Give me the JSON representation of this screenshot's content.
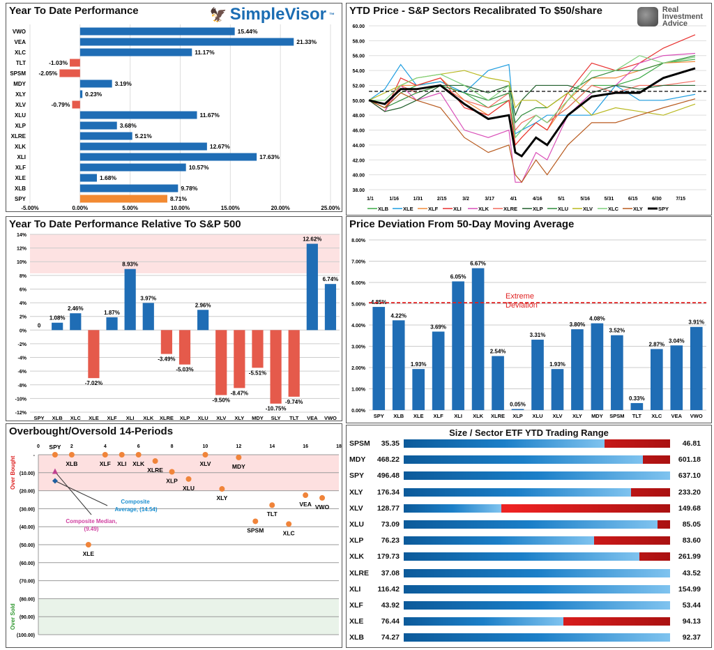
{
  "brand": {
    "simplevisor": "SimpleVisor",
    "tm": "™",
    "ria": [
      "Real",
      "Investment",
      "Advice"
    ]
  },
  "chart_data": [
    {
      "id": "ytd",
      "type": "bar",
      "orientation": "horizontal",
      "title": "Year To Date Performance",
      "categories": [
        "VWO",
        "VEA",
        "XLC",
        "TLT",
        "SPSM",
        "MDY",
        "XLY",
        "XLV",
        "XLU",
        "XLP",
        "XLRE",
        "XLK",
        "XLI",
        "XLF",
        "XLE",
        "XLB",
        "SPY"
      ],
      "values": [
        15.44,
        21.33,
        11.17,
        -1.03,
        -2.05,
        3.19,
        0.23,
        -0.79,
        11.67,
        3.68,
        5.21,
        12.67,
        17.63,
        10.57,
        1.68,
        9.78,
        8.71
      ],
      "labels": [
        "15.44%",
        "21.33%",
        "11.17%",
        "-1.03%",
        "-2.05%",
        "3.19%",
        "0.23%",
        "-0.79%",
        "11.67%",
        "3.68%",
        "5.21%",
        "12.67%",
        "17.63%",
        "10.57%",
        "1.68%",
        "9.78%",
        "8.71%"
      ],
      "xlim": [
        -5,
        25
      ],
      "xticks": [
        "-5.00%",
        "0.00%",
        "5.00%",
        "10.00%",
        "15.00%",
        "20.00%",
        "25.00%"
      ],
      "colors": {
        "positive": "#1f6db5",
        "negative": "#e55a4b",
        "highlight": "#f28a32"
      }
    },
    {
      "id": "prices",
      "type": "line",
      "title": "YTD Price - S&P Sectors Recalibrated To $50/share",
      "x_days": [
        0,
        10,
        20,
        30,
        45,
        60,
        75,
        88,
        92,
        96,
        105,
        112,
        125,
        140,
        155,
        170,
        185,
        205
      ],
      "xticks": [
        "1/1",
        "1/16",
        "1/31",
        "2/15",
        "3/2",
        "3/17",
        "4/1",
        "4/16",
        "5/1",
        "5/16",
        "5/31",
        "6/15",
        "6/30",
        "7/15"
      ],
      "ylim": [
        38,
        60
      ],
      "yticks": [
        "38.00",
        "40.00",
        "42.00",
        "44.00",
        "46.00",
        "48.00",
        "50.00",
        "52.00",
        "54.00",
        "56.00",
        "58.00",
        "60.00"
      ],
      "reference_line": 51.2,
      "series": [
        {
          "name": "XLB",
          "color": "#3aa845",
          "values": [
            50,
            49,
            51,
            52,
            52.5,
            51,
            49,
            50,
            45,
            46,
            48,
            47,
            49,
            52,
            52,
            53,
            55,
            55.5
          ]
        },
        {
          "name": "XLE",
          "color": "#1e9de0",
          "values": [
            50,
            51.5,
            54.8,
            52,
            52.5,
            51,
            54,
            54.8,
            45.5,
            46,
            47,
            48,
            48,
            48,
            52,
            50,
            50,
            50.8
          ]
        },
        {
          "name": "XLF",
          "color": "#f08a3a",
          "values": [
            50,
            49,
            52,
            52,
            53,
            50,
            48,
            50,
            44,
            45,
            47,
            46,
            50,
            53,
            53,
            54,
            55,
            55.2
          ]
        },
        {
          "name": "XLI",
          "color": "#e8312f",
          "values": [
            50,
            48.5,
            53,
            52,
            53,
            49,
            48,
            50,
            44,
            45,
            47,
            46,
            51,
            55,
            54,
            55,
            57,
            58.8
          ]
        },
        {
          "name": "XLK",
          "color": "#d94fb8",
          "values": [
            50,
            48.5,
            52,
            50,
            51,
            46,
            45,
            46,
            39,
            39,
            43,
            42,
            48,
            51,
            52,
            55,
            56,
            56.3
          ]
        },
        {
          "name": "XLRE",
          "color": "#f26b5e",
          "values": [
            50,
            49,
            52,
            51,
            52,
            50,
            49,
            51,
            46,
            47,
            48,
            47,
            49,
            52,
            51,
            52,
            52,
            52.6
          ]
        },
        {
          "name": "XLP",
          "color": "#1f5e2a",
          "values": [
            50,
            48.5,
            49,
            50,
            52,
            52,
            51,
            52,
            48,
            50,
            52,
            52,
            52,
            51,
            52,
            51.5,
            52,
            52
          ]
        },
        {
          "name": "XLU",
          "color": "#2e8b3a",
          "values": [
            50,
            49,
            50,
            51,
            52,
            51,
            50,
            51,
            47,
            48,
            49,
            49,
            51,
            53,
            54,
            54,
            55,
            56
          ]
        },
        {
          "name": "XLV",
          "color": "#b8b81e",
          "values": [
            50,
            51,
            52,
            53,
            53.5,
            54,
            53,
            52.5,
            49,
            50,
            50,
            49,
            51,
            48,
            49,
            48.5,
            48,
            49.5
          ]
        },
        {
          "name": "XLC",
          "color": "#7dcf7a",
          "values": [
            50,
            50,
            52,
            53,
            53.5,
            52,
            50,
            52,
            45,
            46,
            48,
            47,
            50,
            54,
            54,
            56,
            55,
            55.8
          ]
        },
        {
          "name": "XLY",
          "color": "#b85a1e",
          "values": [
            50,
            49,
            51,
            50,
            49,
            45,
            43,
            44,
            40,
            39,
            42,
            40,
            44,
            47,
            47,
            48,
            49,
            50.2
          ]
        },
        {
          "name": "SPY",
          "color": "#000000",
          "values": [
            50,
            49.5,
            51.5,
            51.5,
            52,
            49.5,
            47.5,
            48,
            43,
            42.5,
            45,
            44,
            48,
            50.5,
            51,
            51,
            53,
            54.3
          ]
        }
      ]
    },
    {
      "id": "relative",
      "type": "bar",
      "title": "Year To Date Performance Relative To S&P 500",
      "categories": [
        "SPY",
        "XLB",
        "XLC",
        "XLE",
        "XLF",
        "XLI",
        "XLK",
        "XLRE",
        "XLP",
        "XLU",
        "XLV",
        "XLY",
        "MDY",
        "SLY",
        "TLT",
        "VEA",
        "VWO"
      ],
      "values": [
        0,
        1.08,
        2.46,
        -7.02,
        1.87,
        8.93,
        3.97,
        -3.49,
        -5.03,
        2.96,
        -9.5,
        -8.47,
        -5.51,
        -10.75,
        -9.74,
        12.62,
        6.74
      ],
      "labels": [
        "0",
        "1.08%",
        "2.46%",
        "-7.02%",
        "1.87%",
        "8.93%",
        "3.97%",
        "-3.49%",
        "-5.03%",
        "2.96%",
        "-9.50%",
        "-8.47%",
        "-5.51%",
        "-10.75%",
        "-9.74%",
        "12.62%",
        "6.74%"
      ],
      "ylim": [
        -12,
        14
      ],
      "yticks": [
        "-12%",
        "-10%",
        "-8%",
        "-6%",
        "-4%",
        "-2%",
        "0%",
        "2%",
        "4%",
        "6%",
        "8%",
        "10%",
        "12%",
        "14%"
      ],
      "shaded_band": [
        8.3,
        14
      ]
    },
    {
      "id": "deviation",
      "type": "bar",
      "title": "Price Deviation From 50-Day Moving Average",
      "categories": [
        "SPY",
        "XLB",
        "XLE",
        "XLF",
        "XLI",
        "XLK",
        "XLRE",
        "XLP",
        "XLU",
        "XLV",
        "XLY",
        "MDY",
        "SPSM",
        "TLT",
        "XLC",
        "VEA",
        "VWO"
      ],
      "values": [
        4.85,
        4.22,
        1.93,
        3.69,
        6.05,
        6.67,
        2.54,
        0.05,
        3.31,
        1.93,
        3.8,
        4.08,
        3.52,
        0.33,
        2.87,
        3.04,
        3.91
      ],
      "labels": [
        "4.85%",
        "4.22%",
        "1.93%",
        "3.69%",
        "6.05%",
        "6.67%",
        "2.54%",
        "0.05%",
        "3.31%",
        "1.93%",
        "3.80%",
        "4.08%",
        "3.52%",
        "0.33%",
        "2.87%",
        "3.04%",
        "3.91%"
      ],
      "ylim": [
        0,
        8
      ],
      "yticks": [
        "0.00%",
        "1.00%",
        "2.00%",
        "3.00%",
        "4.00%",
        "5.00%",
        "6.00%",
        "7.00%",
        "8.00%"
      ],
      "threshold": 5.05,
      "threshold_label": [
        "Extreme",
        "Deviation"
      ]
    },
    {
      "id": "obos",
      "type": "scatter",
      "title": "Overbought/Oversold 14-Periods",
      "xlim": [
        0,
        18
      ],
      "xticks": [
        "0",
        "2",
        "4",
        "6",
        "8",
        "10",
        "12",
        "14",
        "16",
        "18"
      ],
      "ylim": [
        -100,
        0
      ],
      "yticks": [
        "-",
        "(10.00)",
        "(20.00)",
        "(30.00)",
        "(40.00)",
        "(50.00)",
        "(60.00)",
        "(70.00)",
        "(80.00)",
        "(90.00)",
        "(100.00)"
      ],
      "zones": {
        "overbought": "Over Bought",
        "oversold": "Over Sold"
      },
      "points": [
        {
          "name": "SPY",
          "x": 1,
          "y": 0
        },
        {
          "name": "XLB",
          "x": 2,
          "y": 0
        },
        {
          "name": "XLE",
          "x": 3,
          "y": -50
        },
        {
          "name": "XLF",
          "x": 4,
          "y": 0
        },
        {
          "name": "XLI",
          "x": 5,
          "y": 0
        },
        {
          "name": "XLK",
          "x": 6,
          "y": 0
        },
        {
          "name": "XLRE",
          "x": 7,
          "y": -3.5
        },
        {
          "name": "XLP",
          "x": 8,
          "y": -9.5
        },
        {
          "name": "XLU",
          "x": 9,
          "y": -13.5
        },
        {
          "name": "XLV",
          "x": 10,
          "y": 0
        },
        {
          "name": "XLY",
          "x": 11,
          "y": -19
        },
        {
          "name": "MDY",
          "x": 12,
          "y": -1.5
        },
        {
          "name": "SPSM",
          "x": 13,
          "y": -37
        },
        {
          "name": "TLT",
          "x": 14,
          "y": -28
        },
        {
          "name": "XLC",
          "x": 15,
          "y": -38.5
        },
        {
          "name": "VEA",
          "x": 16,
          "y": -22.5
        },
        {
          "name": "VWO",
          "x": 17,
          "y": -24
        }
      ],
      "median": {
        "x": 1,
        "y": -9.49,
        "label": [
          "Composite Median,",
          "(9.49)"
        ]
      },
      "average": {
        "x": 1,
        "y": -14.54,
        "label": [
          "Composite",
          "Average,  (14.54)"
        ]
      }
    },
    {
      "id": "range",
      "type": "table",
      "title": "Size / Sector ETF YTD Trading Range",
      "rows": [
        {
          "ticker": "SPSM",
          "low": "35.35",
          "high": "46.81",
          "position": 0.754
        },
        {
          "ticker": "MDY",
          "low": "468.22",
          "high": "601.18",
          "position": 0.898
        },
        {
          "ticker": "SPY",
          "low": "496.48",
          "high": "637.10",
          "position": 1.0
        },
        {
          "ticker": "XLY",
          "low": "176.34",
          "high": "233.20",
          "position": 0.853
        },
        {
          "ticker": "XLV",
          "low": "128.77",
          "high": "149.68",
          "position": 0.366
        },
        {
          "ticker": "XLU",
          "low": "73.09",
          "high": "85.05",
          "position": 0.953
        },
        {
          "ticker": "XLP",
          "low": "76.23",
          "high": "83.60",
          "position": 0.715
        },
        {
          "ticker": "XLK",
          "low": "179.73",
          "high": "261.99",
          "position": 0.885
        },
        {
          "ticker": "XLRE",
          "low": "37.08",
          "high": "43.52",
          "position": 1.0
        },
        {
          "ticker": "XLI",
          "low": "116.42",
          "high": "154.99",
          "position": 1.0
        },
        {
          "ticker": "XLF",
          "low": "43.92",
          "high": "53.44",
          "position": 1.0
        },
        {
          "ticker": "XLE",
          "low": "76.44",
          "high": "94.13",
          "position": 0.6
        },
        {
          "ticker": "XLB",
          "low": "74.27",
          "high": "92.37",
          "position": 1.0
        }
      ]
    }
  ]
}
